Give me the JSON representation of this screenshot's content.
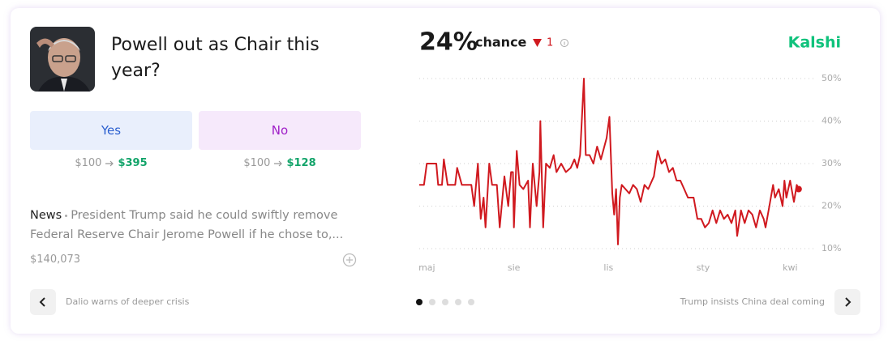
{
  "market": {
    "title": "Powell out as Chair this year?",
    "options": [
      {
        "label": "Yes",
        "stake": "$100",
        "payout": "$395"
      },
      {
        "label": "No",
        "stake": "$100",
        "payout": "$128"
      }
    ],
    "news": {
      "label": "News",
      "text": "President Trump said he could swiftly remove Federal Reserve Chair Jerome Powell if he chose to,..."
    },
    "volume": "$140,073",
    "headline": "24%",
    "headline_suffix": "chance",
    "change": "1",
    "source": "Kalshi",
    "prev_story": "Dalio warns of deeper crisis",
    "next_story": "Trump insists China deal coming"
  },
  "chart_data": {
    "type": "line",
    "color": "#d0191f",
    "x": [
      0,
      5,
      8,
      18,
      20,
      24,
      26,
      30,
      38,
      40,
      45,
      55,
      58,
      62,
      65,
      68,
      70,
      74,
      77,
      82,
      85,
      90,
      94,
      97,
      99,
      100,
      103,
      106,
      110,
      115,
      117,
      120,
      124,
      127,
      128,
      131,
      134,
      138,
      142,
      145,
      150,
      155,
      160,
      164,
      167,
      170,
      174,
      176,
      180,
      184,
      188,
      192,
      198,
      201,
      204,
      206,
      208,
      210,
      212,
      214,
      218,
      222,
      226,
      230,
      234,
      238,
      242,
      248,
      252,
      256,
      260,
      264,
      268,
      272,
      276,
      280,
      284,
      290,
      294,
      298,
      302,
      306,
      310,
      314,
      318,
      322,
      326,
      330,
      334,
      336,
      340,
      344,
      348,
      352,
      356,
      360,
      364,
      366,
      370,
      374,
      376,
      380,
      384,
      386,
      388,
      392,
      396,
      399,
      401
    ],
    "values": [
      25,
      25,
      30,
      30,
      25,
      25,
      31,
      25,
      25,
      29,
      25,
      25,
      20,
      30,
      17,
      22,
      15,
      30,
      25,
      25,
      15,
      27,
      20,
      28,
      28,
      15,
      33,
      25,
      24,
      26,
      15,
      30,
      20,
      28,
      40,
      15,
      30,
      29,
      32,
      28,
      30,
      28,
      29,
      31,
      29,
      32,
      50,
      32,
      32,
      30,
      34,
      31,
      36,
      41,
      23,
      18,
      24,
      11,
      22,
      25,
      24,
      23,
      25,
      24,
      21,
      25,
      24,
      27,
      33,
      30,
      31,
      28,
      29,
      26,
      26,
      24,
      22,
      22,
      17,
      17,
      15,
      16,
      19,
      16,
      19,
      17,
      18,
      16,
      19,
      13,
      19,
      16,
      19,
      18,
      15,
      19,
      17,
      15,
      20,
      25,
      22,
      24,
      20,
      26,
      22,
      26,
      21,
      25,
      24
    ],
    "xlim": [
      0,
      420
    ],
    "ylim": [
      10,
      50
    ],
    "xticks": [
      {
        "value": 8,
        "label": "maj"
      },
      {
        "value": 100,
        "label": "sie"
      },
      {
        "value": 200,
        "label": "lis"
      },
      {
        "value": 300,
        "label": "sty"
      },
      {
        "value": 392,
        "label": "kwi"
      }
    ],
    "yticks": [
      {
        "value": 10,
        "label": "10%"
      },
      {
        "value": 20,
        "label": "20%"
      },
      {
        "value": 30,
        "label": "30%"
      },
      {
        "value": 40,
        "label": "40%"
      },
      {
        "value": 50,
        "label": "50%"
      }
    ],
    "grid": true
  }
}
